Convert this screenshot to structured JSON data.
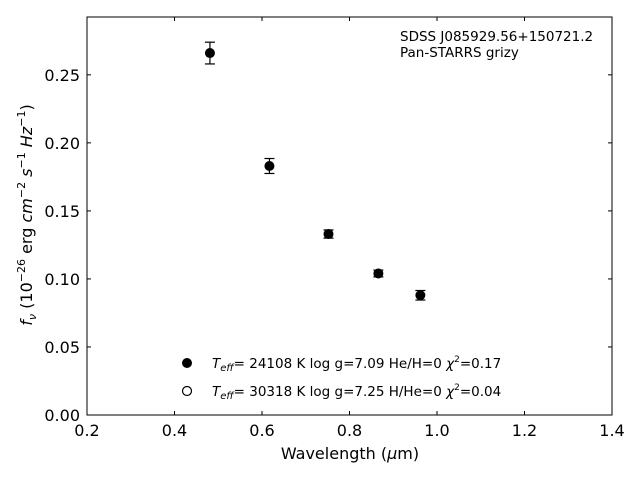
{
  "chart_data": {
    "type": "scatter",
    "annotation_lines": [
      "SDSS J085929.56+150721.2",
      "Pan-STARRS grizy"
    ],
    "xlabel": "Wavelength (μm)",
    "ylabel": "f_ν (10^-26 erg cm^-2 s^-1 Hz^-1)",
    "xlim": [
      0.2,
      1.4
    ],
    "ylim": [
      0.0,
      0.2925
    ],
    "xticks": [
      0.2,
      0.4,
      0.6,
      0.8,
      1.0,
      1.2,
      1.4
    ],
    "xtick_labels": [
      "0.2",
      "0.4",
      "0.6",
      "0.8",
      "1.0",
      "1.2",
      "1.4"
    ],
    "yticks": [
      0.0,
      0.05,
      0.1,
      0.15,
      0.2,
      0.25
    ],
    "ytick_labels": [
      "0.00",
      "0.05",
      "0.10",
      "0.15",
      "0.20",
      "0.25"
    ],
    "grid": false,
    "legend_position": "lower-center",
    "series": [
      {
        "marker": "filled-circle",
        "points": [
          {
            "x": 0.481,
            "y": 0.266,
            "err": 0.008
          },
          {
            "x": 0.617,
            "y": 0.183,
            "err": 0.0055
          },
          {
            "x": 0.752,
            "y": 0.133,
            "err": 0.003
          },
          {
            "x": 0.866,
            "y": 0.104,
            "err": 0.0025
          },
          {
            "x": 0.962,
            "y": 0.088,
            "err": 0.0035
          }
        ]
      }
    ],
    "legend": [
      {
        "marker": "filled",
        "teff": "24108 K",
        "logg": "log g=7.09",
        "comp": "He/H=0",
        "chi2": "=0.17"
      },
      {
        "marker": "open",
        "teff": "30318 K",
        "logg": "log g=7.25",
        "comp": "H/He=0",
        "chi2": "=0.04"
      }
    ]
  }
}
